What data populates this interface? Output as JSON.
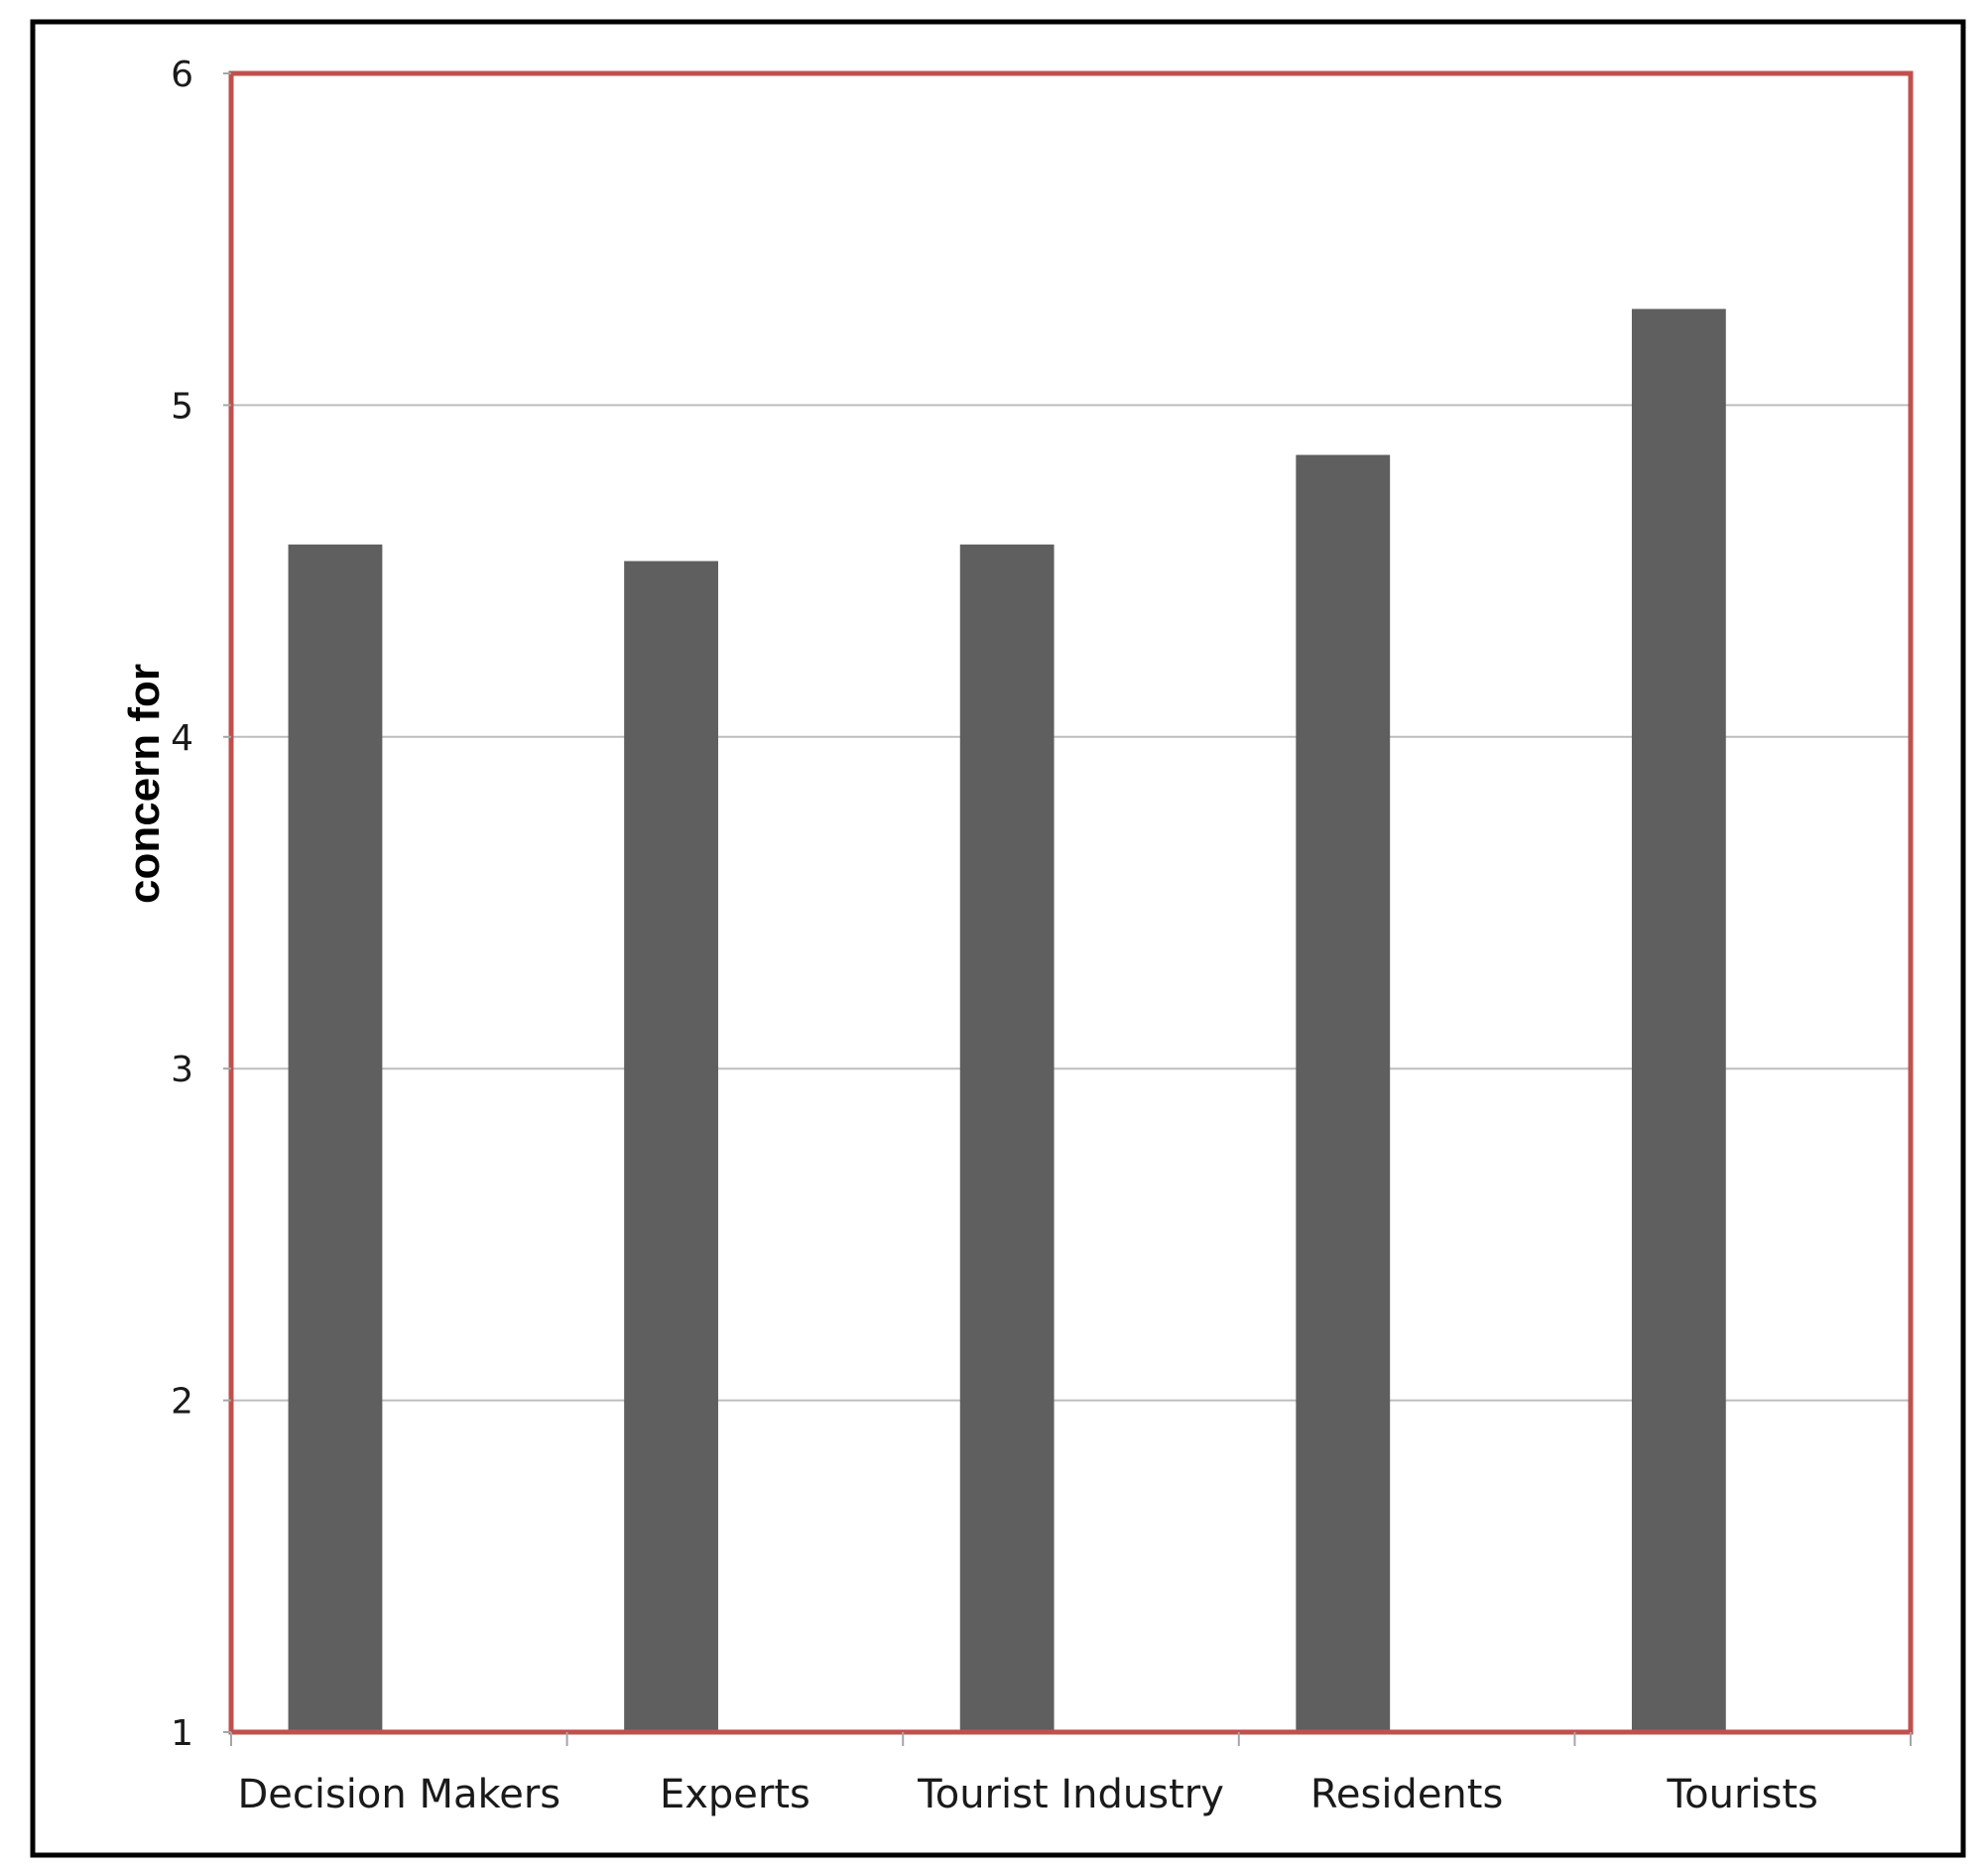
{
  "chart_data": {
    "type": "bar",
    "title": "",
    "xlabel": "",
    "ylabel": "concern for",
    "categories": [
      "Decision Makers",
      "Experts",
      "Tourist Industry",
      "Residents",
      "Tourists"
    ],
    "values": [
      4.58,
      4.53,
      4.58,
      4.85,
      5.29
    ],
    "ylim": [
      1,
      6
    ],
    "yticks": [
      1,
      2,
      3,
      4,
      5,
      6
    ],
    "grid": true,
    "legend": "none",
    "colors": {
      "bar": "#5f5f5f",
      "plot_border": "#c0504d",
      "frame": "#000000",
      "gridline": "#bdbdbd",
      "axis": "#a6a6a6"
    }
  }
}
